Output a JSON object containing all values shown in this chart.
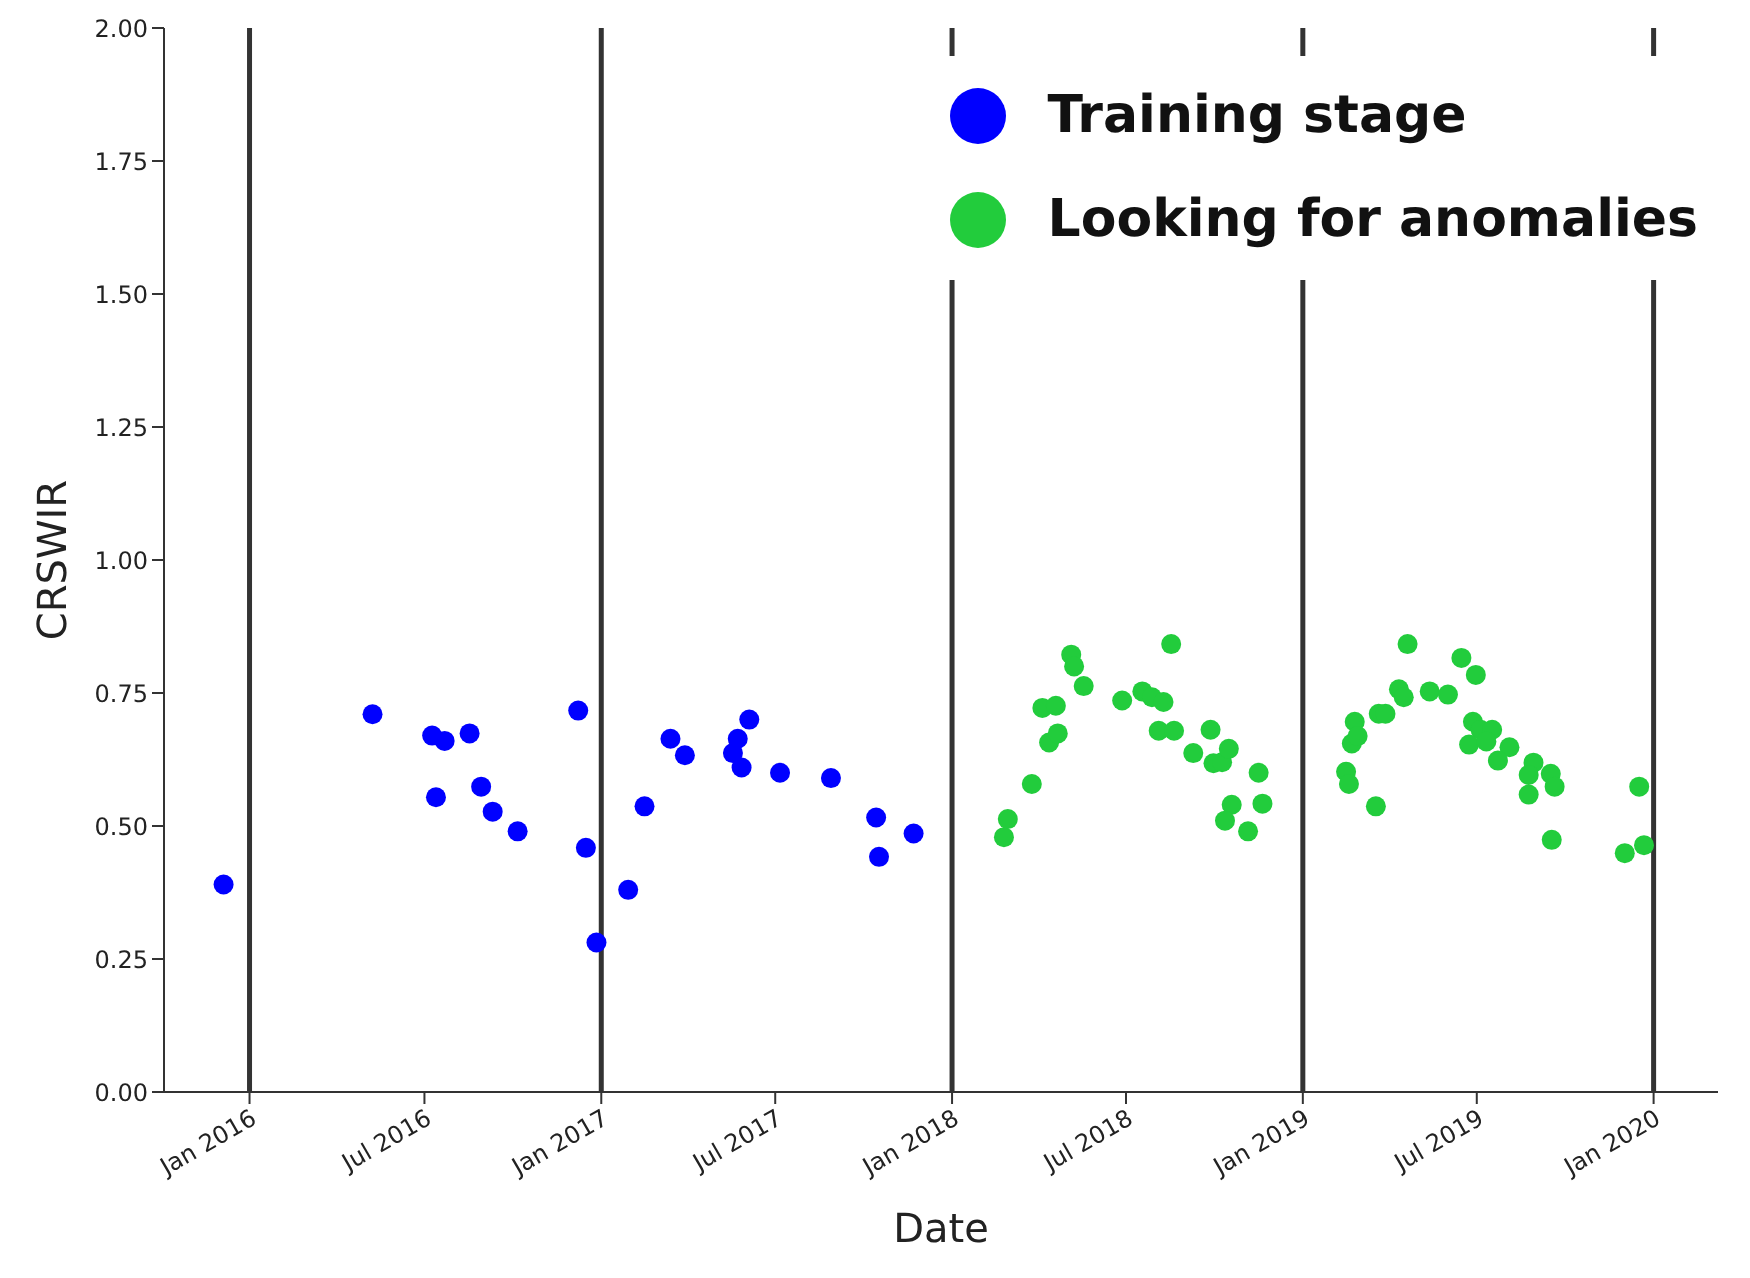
{
  "chart_data": {
    "type": "scatter",
    "xlabel": "Date",
    "ylabel": "CRSWIR",
    "xlim": [
      "2015-10-04",
      "2020-03-08"
    ],
    "xticks": [
      {
        "value": "2016-01",
        "label": "Jan 2016"
      },
      {
        "value": "2016-07",
        "label": "Jul 2016"
      },
      {
        "value": "2017-01",
        "label": "Jan 2017"
      },
      {
        "value": "2017-07",
        "label": "Jul 2017"
      },
      {
        "value": "2018-01",
        "label": "Jan 2018"
      },
      {
        "value": "2018-07",
        "label": "Jul 2018"
      },
      {
        "value": "2019-01",
        "label": "Jan 2019"
      },
      {
        "value": "2019-07",
        "label": "Jul 2019"
      },
      {
        "value": "2020-01",
        "label": "Jan 2020"
      }
    ],
    "ylim": [
      0,
      2
    ],
    "yticks": [
      {
        "value": 0,
        "label": "0.00"
      },
      {
        "value": 0.25,
        "label": "0.25"
      },
      {
        "value": 0.5,
        "label": "0.50"
      },
      {
        "value": 0.75,
        "label": "0.75"
      },
      {
        "value": 1,
        "label": "1.00"
      },
      {
        "value": 1.25,
        "label": "1.25"
      },
      {
        "value": 1.5,
        "label": "1.50"
      },
      {
        "value": 1.75,
        "label": "1.75"
      },
      {
        "value": 2,
        "label": "2.00"
      }
    ],
    "grid": false,
    "legend": "top right",
    "marker": "circle",
    "ref_lines": [
      {
        "axis": "x",
        "value": "2016-01",
        "color": "#333333"
      },
      {
        "axis": "x",
        "value": "2017-01",
        "color": "#333333"
      },
      {
        "axis": "x",
        "value": "2018-01",
        "color": "#333333"
      },
      {
        "axis": "x",
        "value": "2019-01",
        "color": "#333333"
      },
      {
        "axis": "x",
        "value": "2020-01",
        "color": "#333333"
      }
    ],
    "series": [
      {
        "name": "Training stage",
        "color": "#0000ff",
        "x": [
          "2015-12-05",
          "2016-05-08",
          "2016-07-09",
          "2016-07-22",
          "2016-08-17",
          "2016-07-13",
          "2016-08-29",
          "2016-09-10",
          "2016-10-06",
          "2016-12-08",
          "2016-12-16",
          "2016-12-27",
          "2017-01-29",
          "2017-02-15",
          "2017-03-14",
          "2017-03-29",
          "2017-06-04",
          "2017-05-23",
          "2017-05-18",
          "2017-05-27",
          "2017-07-06",
          "2017-08-28",
          "2017-10-14",
          "2017-10-17",
          "2017-11-22"
        ],
        "values": [
          0.39,
          0.71,
          0.67,
          0.66,
          0.674,
          0.554,
          0.574,
          0.527,
          0.49,
          0.717,
          0.459,
          0.281,
          0.38,
          0.537,
          0.664,
          0.633,
          0.7,
          0.664,
          0.637,
          0.61,
          0.6,
          0.59,
          0.516,
          0.442,
          0.486
        ]
      },
      {
        "name": "Looking for anomalies",
        "color": "#22cc3c",
        "x": [
          "2018-02-24",
          "2018-02-28",
          "2018-03-25",
          "2018-04-05",
          "2018-04-19",
          "2018-04-12",
          "2018-04-21",
          "2018-05-05",
          "2018-05-08",
          "2018-05-18",
          "2018-06-27",
          "2018-07-18",
          "2018-07-28",
          "2018-08-09",
          "2018-08-04",
          "2018-08-20",
          "2018-08-17",
          "2018-09-09",
          "2018-09-27",
          "2018-09-30",
          "2018-10-09",
          "2018-10-16",
          "2018-10-19",
          "2018-10-12",
          "2018-11-05",
          "2018-11-16",
          "2018-11-20",
          "2019-02-15",
          "2019-02-18",
          "2019-02-21",
          "2019-02-24",
          "2019-02-27",
          "2019-03-18",
          "2019-03-21",
          "2019-03-28",
          "2019-04-11",
          "2019-04-16",
          "2019-04-20",
          "2019-05-13",
          "2019-06-01",
          "2019-06-15",
          "2019-06-30",
          "2019-06-27",
          "2019-07-05",
          "2019-07-17",
          "2019-06-23",
          "2019-07-11",
          "2019-08-04",
          "2019-07-23",
          "2019-08-29",
          "2019-08-24",
          "2019-09-16",
          "2019-09-20",
          "2019-08-24",
          "2019-09-17",
          "2019-12-02",
          "2019-12-17",
          "2019-12-22"
        ],
        "values": [
          0.479,
          0.513,
          0.579,
          0.722,
          0.726,
          0.657,
          0.674,
          0.822,
          0.8,
          0.763,
          0.736,
          0.753,
          0.742,
          0.733,
          0.679,
          0.679,
          0.842,
          0.637,
          0.681,
          0.618,
          0.62,
          0.645,
          0.54,
          0.51,
          0.49,
          0.6,
          0.542,
          0.602,
          0.579,
          0.655,
          0.696,
          0.669,
          0.537,
          0.711,
          0.711,
          0.757,
          0.742,
          0.842,
          0.753,
          0.747,
          0.816,
          0.784,
          0.696,
          0.681,
          0.681,
          0.653,
          0.659,
          0.648,
          0.623,
          0.619,
          0.596,
          0.598,
          0.574,
          0.559,
          0.474,
          0.449,
          0.574,
          0.464
        ]
      }
    ]
  }
}
